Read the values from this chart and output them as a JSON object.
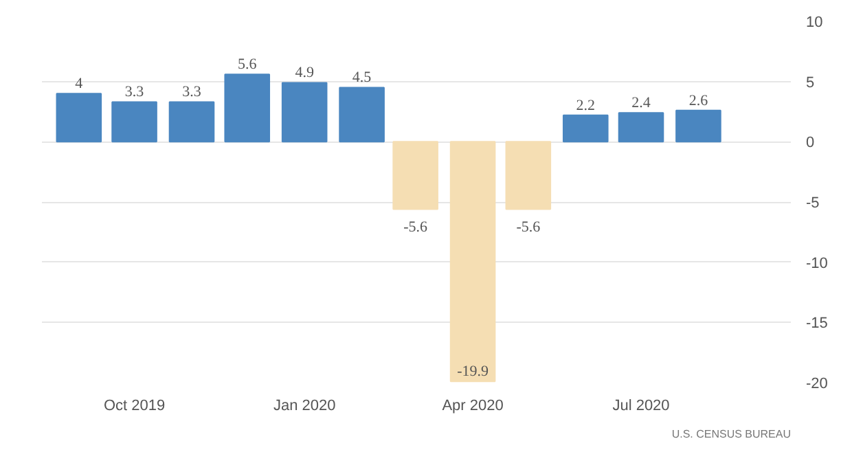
{
  "chart_data": {
    "type": "bar",
    "x": [
      "2019-09",
      "2019-10",
      "2019-11",
      "2019-12",
      "2020-01",
      "2020-02",
      "2020-03",
      "2020-04",
      "2020-05",
      "2020-06",
      "2020-07",
      "2020-08"
    ],
    "values": [
      4,
      3.3,
      3.3,
      5.6,
      4.9,
      4.5,
      -5.6,
      -19.9,
      -5.6,
      2.2,
      2.4,
      2.6
    ],
    "colors": [
      "#4a86c0",
      "#4a86c0",
      "#4a86c0",
      "#4a86c0",
      "#4a86c0",
      "#4a86c0",
      "#f5deb3",
      "#f5deb3",
      "#f5deb3",
      "#4a86c0",
      "#4a86c0",
      "#4a86c0"
    ],
    "data_labels": true,
    "xlim": [
      "2019-08-12",
      "2020-09-20"
    ],
    "xticks": [
      {
        "value": "2019-10",
        "label": "Oct 2019"
      },
      {
        "value": "2020-01",
        "label": "Jan 2020"
      },
      {
        "value": "2020-04",
        "label": "Apr 2020"
      },
      {
        "value": "2020-07",
        "label": "Jul 2020"
      }
    ],
    "ylim": [
      -20,
      10
    ],
    "yticks": [
      -20,
      -15,
      -10,
      -5,
      0,
      5,
      10
    ],
    "grid": "y",
    "annotations": [
      "U.S. CENSUS BUREAU"
    ]
  }
}
